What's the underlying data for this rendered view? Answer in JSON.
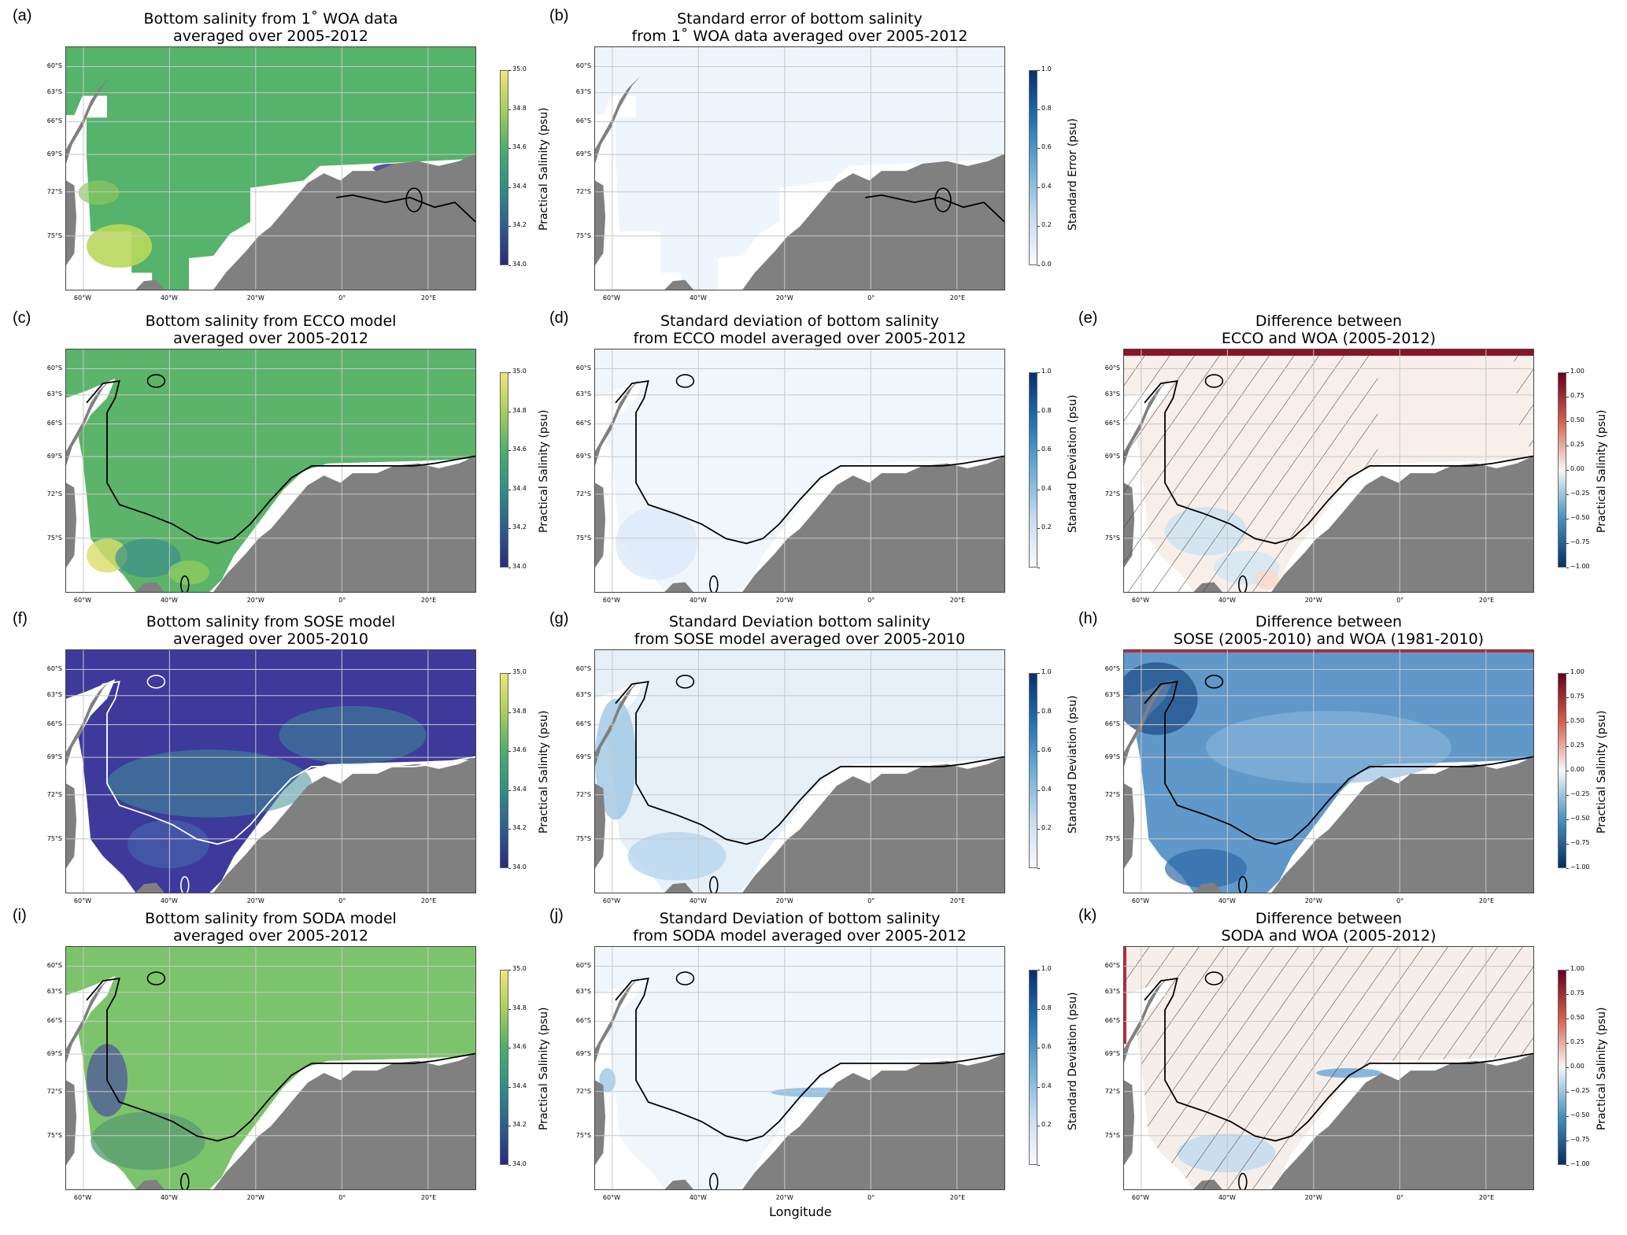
{
  "xlabel": "Longitude",
  "lat_ticks": [
    "60°S",
    "63°S",
    "66°S",
    "69°S",
    "72°S",
    "75°S"
  ],
  "lat_values": [
    -60,
    -63,
    -66,
    -69,
    -72,
    -75
  ],
  "lon_ticks": [
    "60°W",
    "40°W",
    "20°W",
    "0°",
    "20°E"
  ],
  "lon_values": [
    -60,
    -40,
    -20,
    0,
    20
  ],
  "lon_range": [
    -64,
    31
  ],
  "lat_range": [
    -57.6,
    -78
  ],
  "colors": {
    "land": "#808080",
    "grid": "#c8c8c8",
    "hatch": "#333333"
  },
  "colormaps": {
    "salinity": [
      "#2b2a7e",
      "#2d5e8d",
      "#2f8f88",
      "#4cae6c",
      "#a8cf5a",
      "#efe57a"
    ],
    "std": [
      "#f7fbff",
      "#c6dbef",
      "#6baed6",
      "#2171b5",
      "#08306b"
    ],
    "diff": [
      "#053061",
      "#4393c3",
      "#f7f7f7",
      "#d6604d",
      "#67001f"
    ]
  },
  "panels": [
    {
      "id": "a",
      "label": "(a)",
      "title": [
        "Bottom salinity from 1˚ WOA data",
        "averaged over 2005-2012"
      ],
      "cbar_label": "Practical Salinity (psu)",
      "cmap": "salinity",
      "ticks": [
        "34.0",
        "34.2",
        "34.4",
        "34.6",
        "34.8",
        "35.0"
      ],
      "fill": "#55b36c"
    },
    {
      "id": "b",
      "label": "(b)",
      "title": [
        "Standard error of bottom salinity",
        "from 1˚ WOA data averaged over 2005-2012"
      ],
      "cbar_label": "Standard Error (psu)",
      "cmap": "std",
      "ticks": [
        "0.0",
        "0.2",
        "0.4",
        "0.6",
        "0.8",
        "1.0"
      ],
      "fill": "#eef5fc"
    },
    {
      "id": "c",
      "label": "(c)",
      "title": [
        "Bottom salinity from ECCO model",
        "averaged over 2005-2012"
      ],
      "cbar_label": "Practical Salinity (psu)",
      "cmap": "salinity",
      "ticks": [
        "34.0",
        "34.2",
        "34.4",
        "34.6",
        "34.8",
        "35.0"
      ],
      "fill": "#5bb46a"
    },
    {
      "id": "d",
      "label": "(d)",
      "title": [
        "Standard deviation of bottom salinity",
        "from ECCO model averaged over 2005-2012"
      ],
      "cbar_label": "Standard Deviation (psu)",
      "cmap": "std",
      "ticks": [
        "",
        "0.2",
        "0.4",
        "0.6",
        "0.8",
        "1.0"
      ],
      "fill": "#f0f6fc"
    },
    {
      "id": "e",
      "label": "(e)",
      "title": [
        "Difference between",
        "ECCO and WOA (2005-2012)"
      ],
      "cbar_label": "Practical Salinity (psu)",
      "cmap": "diff",
      "ticks": [
        "−1.00",
        "−0.75",
        "−0.50",
        "−0.25",
        "0.00",
        "0.25",
        "0.50",
        "0.75",
        "1.00"
      ],
      "fill": "#f8eeea"
    },
    {
      "id": "f",
      "label": "(f)",
      "title": [
        "Bottom salinity from SOSE model",
        "averaged over 2005-2010"
      ],
      "cbar_label": "Practical Salinity (psu)",
      "cmap": "salinity",
      "ticks": [
        "34.0",
        "34.2",
        "34.4",
        "34.6",
        "34.8",
        "35.0"
      ],
      "fill": "#3d3a9c"
    },
    {
      "id": "g",
      "label": "(g)",
      "title": [
        "Standard Deviation bottom salinity",
        "from SOSE model averaged over 2005-2010"
      ],
      "cbar_label": "Standard Deviation (psu)",
      "cmap": "std",
      "ticks": [
        "",
        "0.2",
        "0.4",
        "0.6",
        "0.8",
        "1.0"
      ],
      "fill": "#e6f0f9"
    },
    {
      "id": "h",
      "label": "(h)",
      "title": [
        "Difference between",
        "SOSE (2005-2010) and WOA (1981-2010)"
      ],
      "cbar_label": "Practical Salinity (psu)",
      "cmap": "diff",
      "ticks": [
        "−1.00",
        "−0.75",
        "−0.50",
        "−0.25",
        "0.00",
        "0.25",
        "0.50",
        "0.75",
        "1.00"
      ],
      "fill": "#5f98c9"
    },
    {
      "id": "i",
      "label": "(i)",
      "title": [
        "Bottom salinity from SODA model",
        "averaged over 2005-2012"
      ],
      "cbar_label": "Practical Salinity (psu)",
      "cmap": "salinity",
      "ticks": [
        "34.0",
        "34.2",
        "34.4",
        "34.6",
        "34.8",
        "35.0"
      ],
      "fill": "#7cc46b"
    },
    {
      "id": "j",
      "label": "(j)",
      "title": [
        "Standard Deviation of bottom salinity",
        "from SODA model averaged over 2005-2012"
      ],
      "cbar_label": "Standard Deviation (psu)",
      "cmap": "std",
      "ticks": [
        "",
        "0.2",
        "0.4",
        "0.6",
        "0.8",
        "1.0"
      ],
      "fill": "#f0f6fc"
    },
    {
      "id": "k",
      "label": "(k)",
      "title": [
        "Difference between",
        "SODA and WOA (2005-2012)"
      ],
      "cbar_label": "Practical Salinity (psu)",
      "cmap": "diff",
      "ticks": [
        "−1.00",
        "−0.75",
        "−0.50",
        "−0.25",
        "0.00",
        "0.25",
        "0.50",
        "0.75",
        "1.00"
      ],
      "fill": "#f6eeea"
    }
  ]
}
